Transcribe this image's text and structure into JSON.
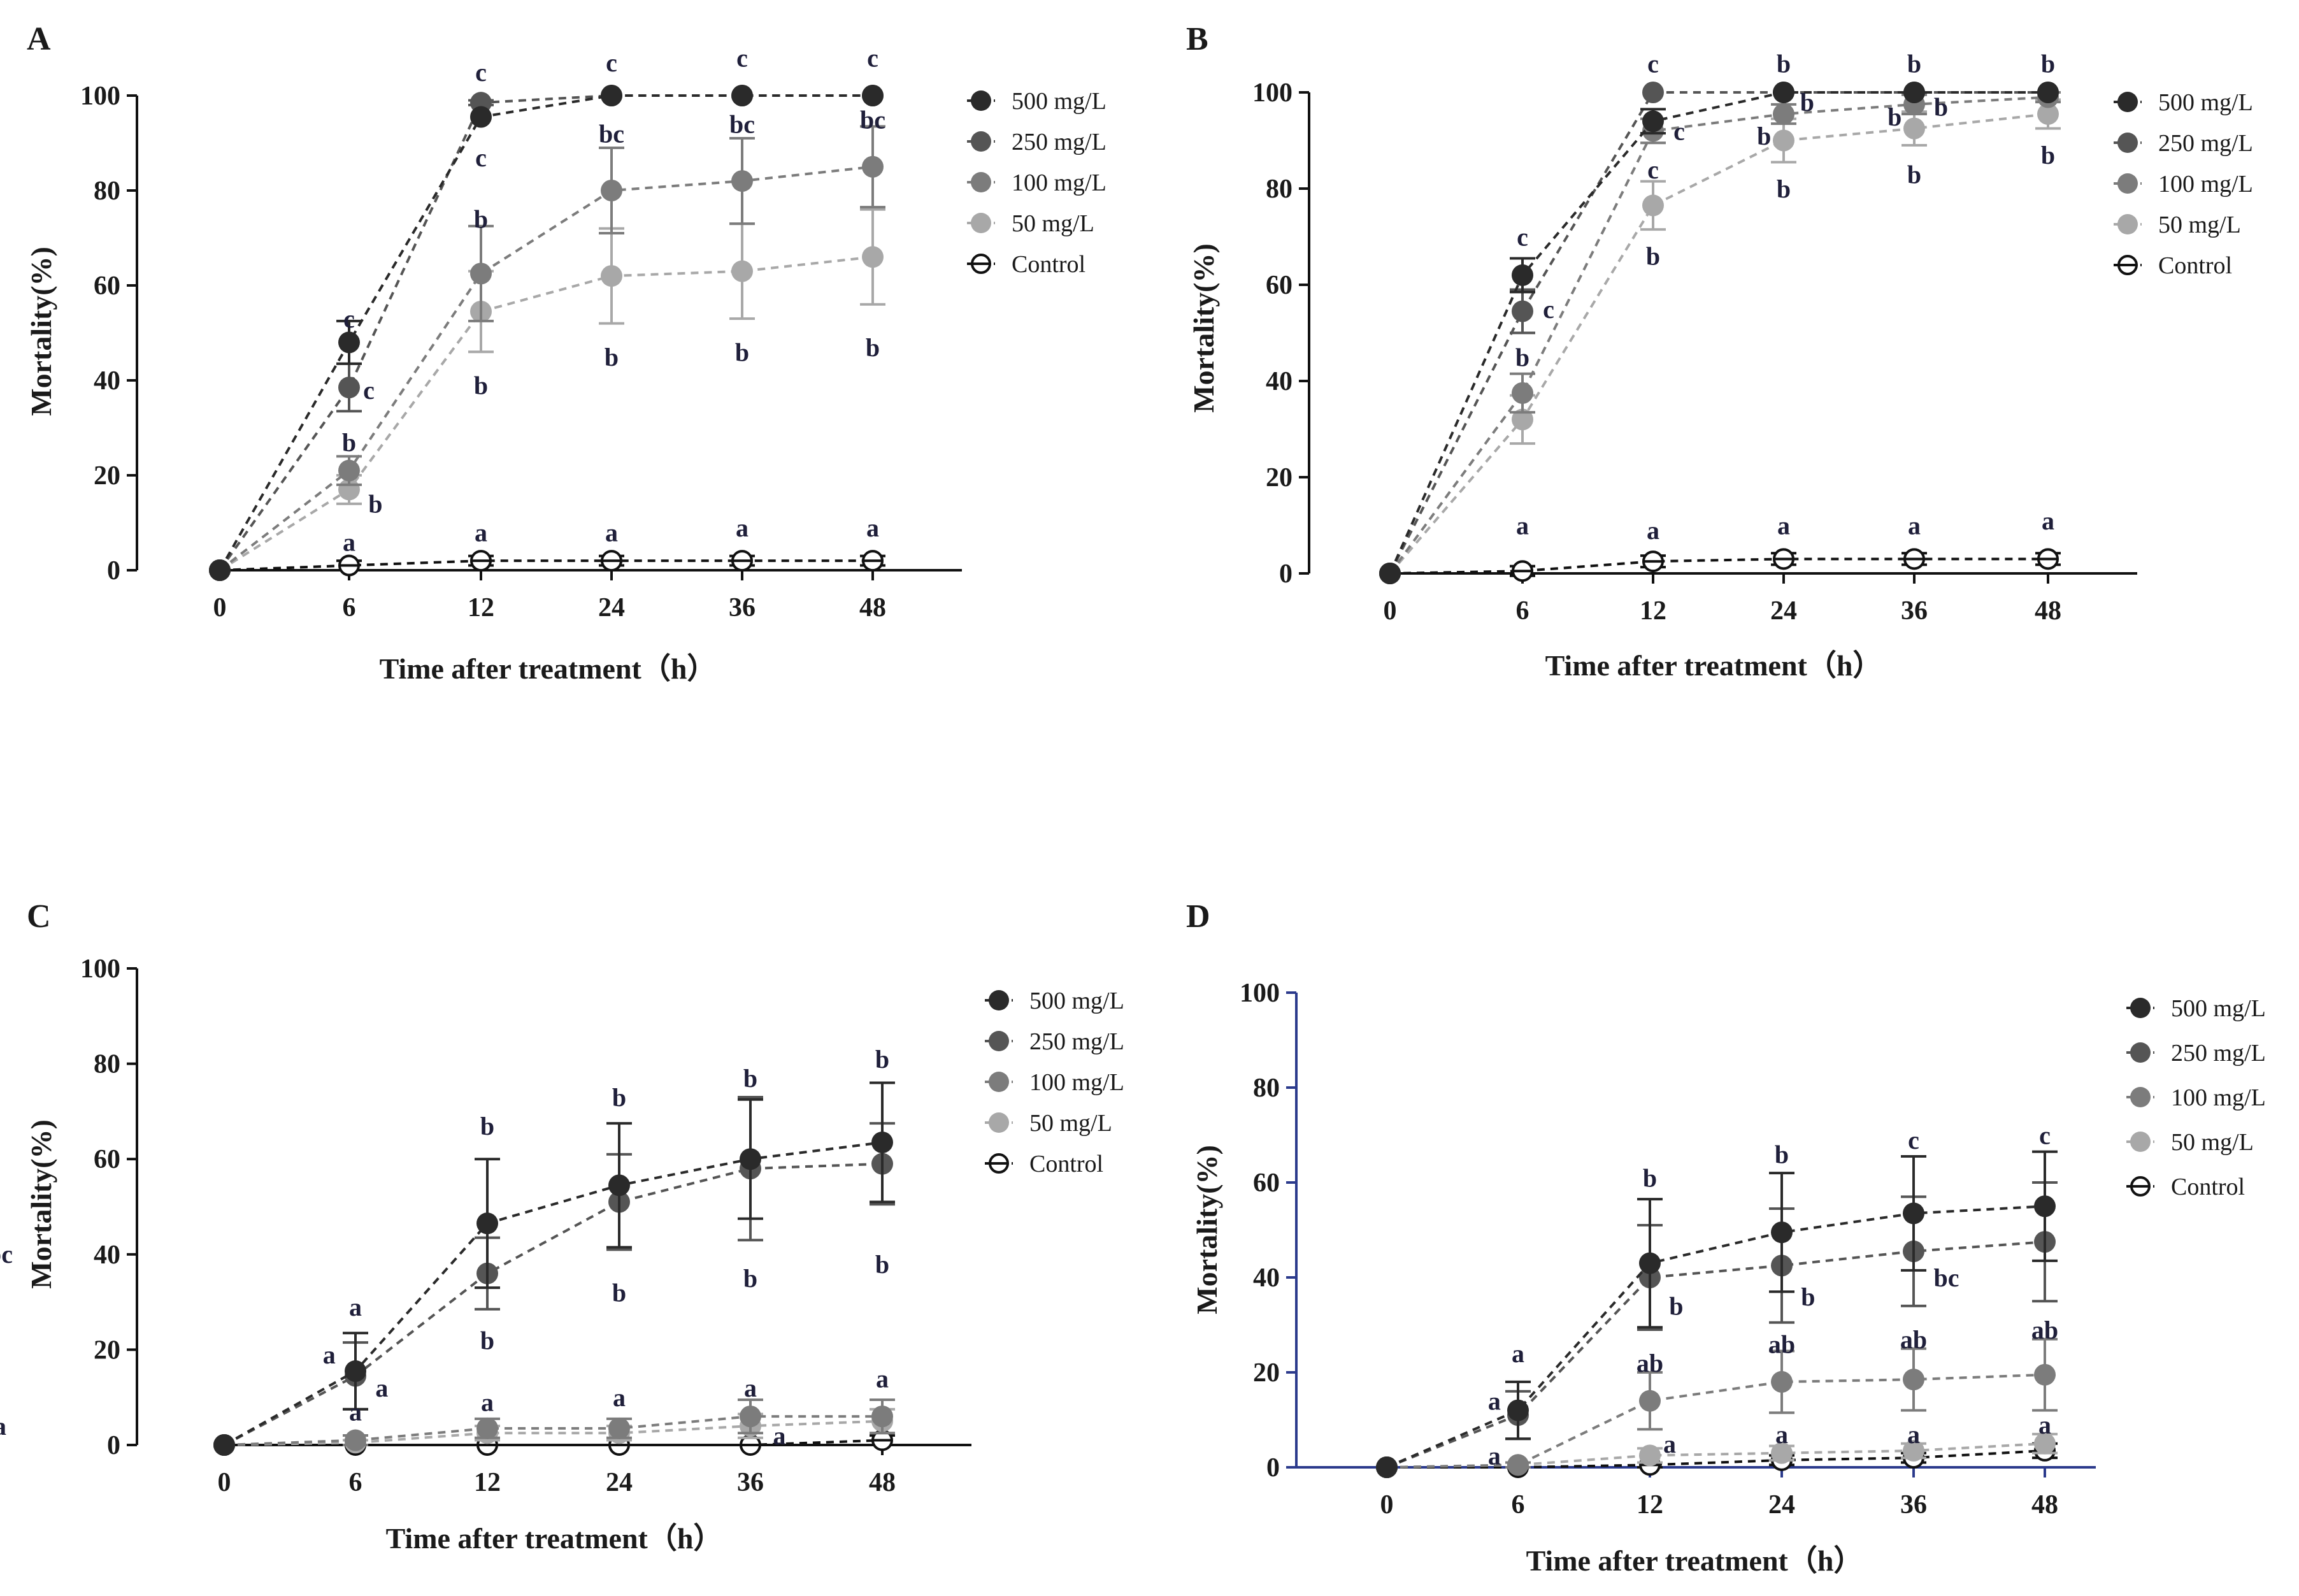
{
  "figure": {
    "xlabel": "Time after treatment（h）",
    "ylabel": "Mortality(%)",
    "series_colors": {
      "500 mg/L": "#2a2a2a",
      "250 mg/L": "#555555",
      "100 mg/L": "#7c7c7c",
      "50 mg/L": "#a8a8a8",
      "Control": "#111111"
    }
  },
  "chart_data": [
    {
      "type": "line",
      "panel": "A",
      "title": "",
      "xlabel": "Time after treatment（h）",
      "ylabel": "Mortality(%)",
      "categories": [
        "0",
        "6",
        "12",
        "24",
        "36",
        "48"
      ],
      "ylim": [
        0,
        100
      ],
      "yticks": [
        "0",
        "20",
        "40",
        "60",
        "80",
        "100"
      ],
      "legend": [
        "500 mg/L",
        "250 mg/L",
        "100 mg/L",
        "50 mg/L",
        "Control"
      ],
      "series": [
        {
          "name": "500 mg/L",
          "values": [
            0,
            48,
            95.5,
            100,
            100,
            100
          ],
          "errors": [
            0,
            4.5,
            0,
            0,
            0,
            0
          ]
        },
        {
          "name": "250 mg/L",
          "values": [
            0,
            38.5,
            98.5,
            100,
            100,
            100
          ],
          "errors": [
            0,
            5,
            0.5,
            0,
            0,
            0
          ]
        },
        {
          "name": "100 mg/L",
          "values": [
            0,
            21,
            62.5,
            80,
            82,
            85
          ],
          "errors": [
            0,
            3,
            10,
            9,
            9,
            8.5
          ]
        },
        {
          "name": "50 mg/L",
          "values": [
            0,
            17,
            54.5,
            62,
            63,
            66
          ],
          "errors": [
            0,
            3,
            8.5,
            10,
            10,
            10
          ]
        },
        {
          "name": "Control",
          "values": [
            0,
            1,
            2,
            2,
            2,
            2
          ],
          "errors": [
            0,
            1,
            1,
            1,
            1,
            1
          ]
        }
      ],
      "annotations": [
        {
          "x": 1,
          "y": 53,
          "text": "c"
        },
        {
          "x": 1.15,
          "y": 38,
          "text": "c"
        },
        {
          "x": 1,
          "y": 27,
          "text": "b"
        },
        {
          "x": 1.2,
          "y": 14,
          "text": "b"
        },
        {
          "x": 1,
          "y": 6,
          "text": "a"
        },
        {
          "x": 2,
          "y": 105,
          "text": "c"
        },
        {
          "x": 2,
          "y": 87,
          "text": "c"
        },
        {
          "x": 2,
          "y": 74,
          "text": "b"
        },
        {
          "x": 2,
          "y": 39,
          "text": "b"
        },
        {
          "x": 2,
          "y": 8,
          "text": "a"
        },
        {
          "x": 3,
          "y": 107,
          "text": "c"
        },
        {
          "x": 3,
          "y": 92,
          "text": "bc"
        },
        {
          "x": 3,
          "y": 45,
          "text": "b"
        },
        {
          "x": 3,
          "y": 8,
          "text": "a"
        },
        {
          "x": 4,
          "y": 108,
          "text": "c"
        },
        {
          "x": 4,
          "y": 94,
          "text": "bc"
        },
        {
          "x": 4,
          "y": 46,
          "text": "b"
        },
        {
          "x": 4,
          "y": 9,
          "text": "a"
        },
        {
          "x": 5,
          "y": 108,
          "text": "c"
        },
        {
          "x": 5,
          "y": 95,
          "text": "bc"
        },
        {
          "x": 5,
          "y": 47,
          "text": "b"
        },
        {
          "x": 5,
          "y": 9,
          "text": "a"
        }
      ]
    },
    {
      "type": "line",
      "panel": "B",
      "title": "",
      "xlabel": "Time after treatment（h）",
      "ylabel": "Mortality(%)",
      "categories": [
        "0",
        "6",
        "12",
        "24",
        "36",
        "48"
      ],
      "ylim": [
        0,
        100
      ],
      "yticks": [
        "0",
        "20",
        "40",
        "60",
        "80",
        "100"
      ],
      "legend": [
        "500 mg/L",
        "250 mg/L",
        "100 mg/L",
        "50 mg/L",
        "Control"
      ],
      "series": [
        {
          "name": "500 mg/L",
          "values": [
            0,
            62,
            94,
            100,
            100,
            100
          ],
          "errors": [
            0,
            3.5,
            2.5,
            0,
            0,
            0
          ]
        },
        {
          "name": "250 mg/L",
          "values": [
            0,
            54.5,
            100,
            100,
            100,
            100
          ],
          "errors": [
            0,
            4.5,
            0,
            0,
            0,
            0
          ]
        },
        {
          "name": "100 mg/L",
          "values": [
            0,
            37.5,
            92,
            95.5,
            97.5,
            99
          ],
          "errors": [
            0,
            4,
            2.5,
            2,
            2,
            1
          ]
        },
        {
          "name": "50 mg/L",
          "values": [
            0,
            32,
            76.5,
            90,
            92.5,
            95.5
          ],
          "errors": [
            0,
            5,
            5,
            4.5,
            3.5,
            3
          ]
        },
        {
          "name": "Control",
          "values": [
            0,
            0.5,
            2.5,
            3,
            3,
            3
          ],
          "errors": [
            0,
            1,
            1.2,
            1.2,
            1.2,
            1.2
          ]
        }
      ],
      "annotations": [
        {
          "x": 1,
          "y": 70,
          "text": "c"
        },
        {
          "x": 1.2,
          "y": 55,
          "text": "c"
        },
        {
          "x": 1,
          "y": 45,
          "text": "b"
        },
        {
          "x": 1,
          "y": 10,
          "text": "a"
        },
        {
          "x": 2,
          "y": 106,
          "text": "c"
        },
        {
          "x": 2.2,
          "y": 92,
          "text": "c"
        },
        {
          "x": 2,
          "y": 84,
          "text": "c"
        },
        {
          "x": 2,
          "y": 66,
          "text": "b"
        },
        {
          "x": 2,
          "y": 9,
          "text": "a"
        },
        {
          "x": 3,
          "y": 106,
          "text": "b"
        },
        {
          "x": 3.18,
          "y": 98,
          "text": "b"
        },
        {
          "x": 2.85,
          "y": 91,
          "text": "b"
        },
        {
          "x": 3,
          "y": 80,
          "text": "b"
        },
        {
          "x": 3,
          "y": 10,
          "text": "a"
        },
        {
          "x": 4,
          "y": 106,
          "text": "b"
        },
        {
          "x": 4.2,
          "y": 97,
          "text": "b"
        },
        {
          "x": 3.85,
          "y": 95,
          "text": "b"
        },
        {
          "x": 4,
          "y": 83,
          "text": "b"
        },
        {
          "x": 4,
          "y": 10,
          "text": "a"
        },
        {
          "x": 5,
          "y": 106,
          "text": "b"
        },
        {
          "x": 5,
          "y": 87,
          "text": "b"
        },
        {
          "x": 5,
          "y": 11,
          "text": "a"
        }
      ]
    },
    {
      "type": "line",
      "panel": "C",
      "title": "",
      "xlabel": "Time after treatment（h）",
      "ylabel": "Mortality(%)",
      "categories": [
        "0",
        "6",
        "12",
        "24",
        "36",
        "48"
      ],
      "ylim": [
        0,
        100
      ],
      "yticks": [
        "0",
        "20",
        "40",
        "60",
        "80",
        "100"
      ],
      "legend": [
        "500 mg/L",
        "250 mg/L",
        "100 mg/L",
        "50 mg/L",
        "Control"
      ],
      "series": [
        {
          "name": "500 mg/L",
          "values": [
            0,
            15.5,
            46.5,
            54.5,
            60,
            63.5
          ],
          "errors": [
            0,
            8,
            13.5,
            13,
            12.5,
            12.5
          ]
        },
        {
          "name": "250 mg/L",
          "values": [
            0,
            14.5,
            36,
            51,
            58,
            59
          ],
          "errors": [
            0,
            7,
            7.5,
            10,
            15,
            8.5
          ]
        },
        {
          "name": "100 mg/L",
          "values": [
            0,
            1,
            3.5,
            3.5,
            6,
            6
          ],
          "errors": [
            0,
            1,
            2,
            2,
            3.5,
            3.5
          ]
        },
        {
          "name": "50 mg/L",
          "values": [
            0,
            0.5,
            2.5,
            2.5,
            4,
            5
          ],
          "errors": [
            0,
            0.5,
            1.5,
            1.5,
            2.5,
            2.5
          ]
        },
        {
          "name": "Control",
          "values": [
            0,
            0,
            0,
            0,
            0,
            1
          ],
          "errors": [
            0,
            0,
            0,
            0,
            0,
            1
          ]
        }
      ],
      "annotations": [
        {
          "x": 1,
          "y": 29,
          "text": "a"
        },
        {
          "x": 0.8,
          "y": 19,
          "text": "a"
        },
        {
          "x": 1.2,
          "y": 12,
          "text": "a"
        },
        {
          "x": 1,
          "y": 7,
          "text": "a"
        },
        {
          "x": 2,
          "y": 67,
          "text": "b"
        },
        {
          "x": 2,
          "y": 22,
          "text": "b"
        },
        {
          "x": 2,
          "y": 9,
          "text": "a"
        },
        {
          "x": 3,
          "y": 73,
          "text": "b"
        },
        {
          "x": 3,
          "y": 32,
          "text": "b"
        },
        {
          "x": 3,
          "y": 10,
          "text": "a"
        },
        {
          "x": 4,
          "y": 77,
          "text": "b"
        },
        {
          "x": 4,
          "y": 35,
          "text": "b"
        },
        {
          "x": 4,
          "y": 12,
          "text": "a"
        },
        {
          "x": 4.22,
          "y": 2,
          "text": "a"
        },
        {
          "x": 5,
          "y": 81,
          "text": "b"
        },
        {
          "x": 5,
          "y": 38,
          "text": "b"
        },
        {
          "x": 5,
          "y": 14,
          "text": "a"
        },
        {
          "x": 5.22,
          "y": 4,
          "text": "a"
        }
      ]
    },
    {
      "type": "line",
      "panel": "D",
      "title": "",
      "xlabel": "Time after treatment（h）",
      "ylabel": "Mortality(%)",
      "categories": [
        "0",
        "6",
        "12",
        "24",
        "36",
        "48"
      ],
      "ylim": [
        0,
        100
      ],
      "yticks": [
        "0",
        "20",
        "40",
        "60",
        "80",
        "100"
      ],
      "legend": [
        "500 mg/L",
        "250 mg/L",
        "100 mg/L",
        "50 mg/L",
        "Control"
      ],
      "series": [
        {
          "name": "500 mg/L",
          "values": [
            0,
            12,
            43,
            49.5,
            53.5,
            55
          ],
          "errors": [
            0,
            6,
            13.5,
            12.5,
            12,
            11.5
          ]
        },
        {
          "name": "250 mg/L",
          "values": [
            0,
            11,
            40,
            42.5,
            45.5,
            47.5
          ],
          "errors": [
            0,
            5,
            11,
            12,
            11.5,
            12.5
          ]
        },
        {
          "name": "100 mg/L",
          "values": [
            0,
            0.5,
            14,
            18,
            18.5,
            19.5
          ],
          "errors": [
            0,
            0.5,
            6,
            6.5,
            6.5,
            7.5
          ]
        },
        {
          "name": "50 mg/L",
          "values": [
            0,
            0.5,
            2.5,
            3,
            3.5,
            5
          ],
          "errors": [
            0,
            0.5,
            1.5,
            1.5,
            1.5,
            2
          ]
        },
        {
          "name": "Control",
          "values": [
            0,
            0,
            0.5,
            1.5,
            2,
            3.5
          ],
          "errors": [
            0,
            0,
            0.5,
            1,
            1,
            1.5
          ]
        }
      ],
      "annotations": [
        {
          "x": 1,
          "y": 24,
          "text": "a"
        },
        {
          "x": 0.82,
          "y": 14,
          "text": "a"
        },
        {
          "x": 0.82,
          "y": 2.5,
          "text": "a"
        },
        {
          "x": 2,
          "y": 61,
          "text": "b"
        },
        {
          "x": 2.2,
          "y": 34,
          "text": "b"
        },
        {
          "x": 2,
          "y": 22,
          "text": "ab"
        },
        {
          "x": 2.15,
          "y": 5,
          "text": "a"
        },
        {
          "x": 3,
          "y": 66,
          "text": "b"
        },
        {
          "x": 3.2,
          "y": 36,
          "text": "b"
        },
        {
          "x": 3,
          "y": 26,
          "text": "ab"
        },
        {
          "x": 3,
          "y": 7,
          "text": "a"
        },
        {
          "x": 4,
          "y": 69,
          "text": "c"
        },
        {
          "x": 4.25,
          "y": 40,
          "text": "bc"
        },
        {
          "x": 4,
          "y": 27,
          "text": "ab"
        },
        {
          "x": 4,
          "y": 7,
          "text": "a"
        },
        {
          "x": 5,
          "y": 70,
          "text": "c"
        },
        {
          "x": 5.3,
          "y": 45,
          "text": "bc"
        },
        {
          "x": 5,
          "y": 29,
          "text": "ab"
        },
        {
          "x": 5,
          "y": 9,
          "text": "a"
        }
      ]
    }
  ]
}
